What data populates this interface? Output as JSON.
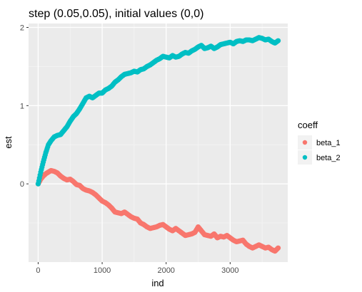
{
  "chart_data": {
    "type": "scatter",
    "title": "step (0.05,0.05), initial values (0,0)",
    "xlabel": "ind",
    "ylabel": "est",
    "xlim": [
      -150,
      3900
    ],
    "ylim": [
      -1.0,
      2.05
    ],
    "x_ticks": [
      0,
      1000,
      2000,
      3000
    ],
    "x_tick_labels": [
      "0",
      "1000",
      "2000",
      "3000"
    ],
    "y_ticks": [
      0,
      1,
      2
    ],
    "y_tick_labels": [
      "0",
      "1",
      "2"
    ],
    "grid": true,
    "legend": {
      "title": "coeff",
      "position": "right"
    },
    "series": [
      {
        "name": "beta_1",
        "color": "#F8766D",
        "x": [
          0,
          40,
          80,
          120,
          160,
          200,
          250,
          300,
          350,
          400,
          450,
          500,
          550,
          600,
          650,
          700,
          750,
          800,
          850,
          900,
          950,
          1000,
          1050,
          1100,
          1150,
          1200,
          1250,
          1300,
          1350,
          1400,
          1450,
          1500,
          1550,
          1600,
          1650,
          1700,
          1750,
          1800,
          1850,
          1900,
          1950,
          2000,
          2050,
          2100,
          2150,
          2200,
          2250,
          2300,
          2350,
          2400,
          2450,
          2500,
          2550,
          2600,
          2650,
          2700,
          2750,
          2800,
          2850,
          2900,
          2950,
          3000,
          3050,
          3100,
          3150,
          3200,
          3250,
          3300,
          3350,
          3400,
          3450,
          3500,
          3550,
          3600,
          3650,
          3700,
          3750
        ],
        "y": [
          0.0,
          0.06,
          0.1,
          0.13,
          0.15,
          0.17,
          0.16,
          0.14,
          0.1,
          0.07,
          0.05,
          0.06,
          0.03,
          -0.01,
          -0.02,
          -0.06,
          -0.08,
          -0.09,
          -0.11,
          -0.14,
          -0.18,
          -0.22,
          -0.24,
          -0.27,
          -0.31,
          -0.36,
          -0.37,
          -0.38,
          -0.36,
          -0.39,
          -0.42,
          -0.44,
          -0.45,
          -0.5,
          -0.52,
          -0.55,
          -0.57,
          -0.56,
          -0.55,
          -0.53,
          -0.52,
          -0.55,
          -0.58,
          -0.6,
          -0.57,
          -0.6,
          -0.63,
          -0.66,
          -0.65,
          -0.64,
          -0.62,
          -0.55,
          -0.6,
          -0.65,
          -0.66,
          -0.67,
          -0.64,
          -0.69,
          -0.67,
          -0.68,
          -0.66,
          -0.69,
          -0.72,
          -0.74,
          -0.73,
          -0.72,
          -0.77,
          -0.8,
          -0.82,
          -0.8,
          -0.78,
          -0.8,
          -0.82,
          -0.81,
          -0.84,
          -0.86,
          -0.82
        ]
      },
      {
        "name": "beta_2",
        "color": "#00BFC4",
        "x": [
          0,
          40,
          80,
          120,
          160,
          200,
          250,
          300,
          350,
          400,
          450,
          500,
          550,
          600,
          650,
          700,
          750,
          800,
          850,
          900,
          950,
          1000,
          1050,
          1100,
          1150,
          1200,
          1250,
          1300,
          1350,
          1400,
          1450,
          1500,
          1550,
          1600,
          1650,
          1700,
          1750,
          1800,
          1850,
          1900,
          1950,
          2000,
          2050,
          2100,
          2150,
          2200,
          2250,
          2300,
          2350,
          2400,
          2450,
          2500,
          2550,
          2600,
          2650,
          2700,
          2750,
          2800,
          2850,
          2900,
          2950,
          3000,
          3050,
          3100,
          3150,
          3200,
          3250,
          3300,
          3350,
          3400,
          3450,
          3500,
          3550,
          3600,
          3650,
          3700,
          3750
        ],
        "y": [
          0.0,
          0.15,
          0.28,
          0.4,
          0.5,
          0.55,
          0.6,
          0.62,
          0.63,
          0.68,
          0.73,
          0.8,
          0.86,
          0.9,
          0.96,
          1.03,
          1.1,
          1.12,
          1.1,
          1.13,
          1.16,
          1.16,
          1.2,
          1.22,
          1.25,
          1.3,
          1.33,
          1.37,
          1.4,
          1.41,
          1.42,
          1.44,
          1.43,
          1.46,
          1.47,
          1.5,
          1.52,
          1.55,
          1.58,
          1.6,
          1.63,
          1.62,
          1.61,
          1.64,
          1.62,
          1.63,
          1.66,
          1.68,
          1.67,
          1.7,
          1.72,
          1.75,
          1.77,
          1.73,
          1.74,
          1.76,
          1.73,
          1.75,
          1.78,
          1.79,
          1.8,
          1.81,
          1.79,
          1.82,
          1.83,
          1.82,
          1.84,
          1.84,
          1.83,
          1.85,
          1.87,
          1.86,
          1.84,
          1.85,
          1.82,
          1.8,
          1.83
        ]
      }
    ]
  }
}
